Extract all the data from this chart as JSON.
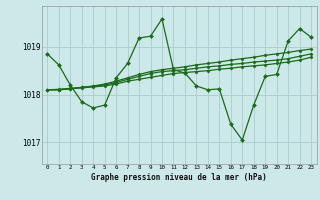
{
  "background_color": "#cce8e8",
  "grid_color": "#aacccc",
  "line_color": "#1a6b1a",
  "marker_color": "#1a6b1a",
  "title": "Graphe pression niveau de la mer (hPa)",
  "ylabel_ticks": [
    1017,
    1018,
    1019
  ],
  "xlim": [
    -0.5,
    23.5
  ],
  "ylim": [
    1016.55,
    1019.85
  ],
  "series": [
    [
      1018.85,
      1018.62,
      1018.2,
      1017.85,
      1017.72,
      1017.78,
      1018.35,
      1018.65,
      1019.18,
      1019.22,
      1019.58,
      1018.52,
      1018.45,
      1018.18,
      1018.1,
      1018.12,
      1017.38,
      1017.05,
      1017.78,
      1018.38,
      1018.42,
      1019.12,
      1019.38,
      1019.2
    ],
    [
      1018.1,
      1018.1,
      1018.12,
      1018.15,
      1018.18,
      1018.22,
      1018.28,
      1018.35,
      1018.42,
      1018.48,
      1018.52,
      1018.55,
      1018.58,
      1018.62,
      1018.65,
      1018.68,
      1018.72,
      1018.75,
      1018.78,
      1018.82,
      1018.85,
      1018.88,
      1018.92,
      1018.95
    ],
    [
      1018.1,
      1018.11,
      1018.13,
      1018.15,
      1018.17,
      1018.2,
      1018.25,
      1018.32,
      1018.38,
      1018.44,
      1018.48,
      1018.5,
      1018.52,
      1018.55,
      1018.58,
      1018.6,
      1018.63,
      1018.65,
      1018.68,
      1018.7,
      1018.72,
      1018.75,
      1018.8,
      1018.85
    ],
    [
      1018.1,
      1018.1,
      1018.12,
      1018.14,
      1018.16,
      1018.18,
      1018.22,
      1018.28,
      1018.32,
      1018.36,
      1018.4,
      1018.44,
      1018.46,
      1018.48,
      1018.5,
      1018.53,
      1018.55,
      1018.58,
      1018.6,
      1018.62,
      1018.65,
      1018.68,
      1018.72,
      1018.78
    ]
  ]
}
